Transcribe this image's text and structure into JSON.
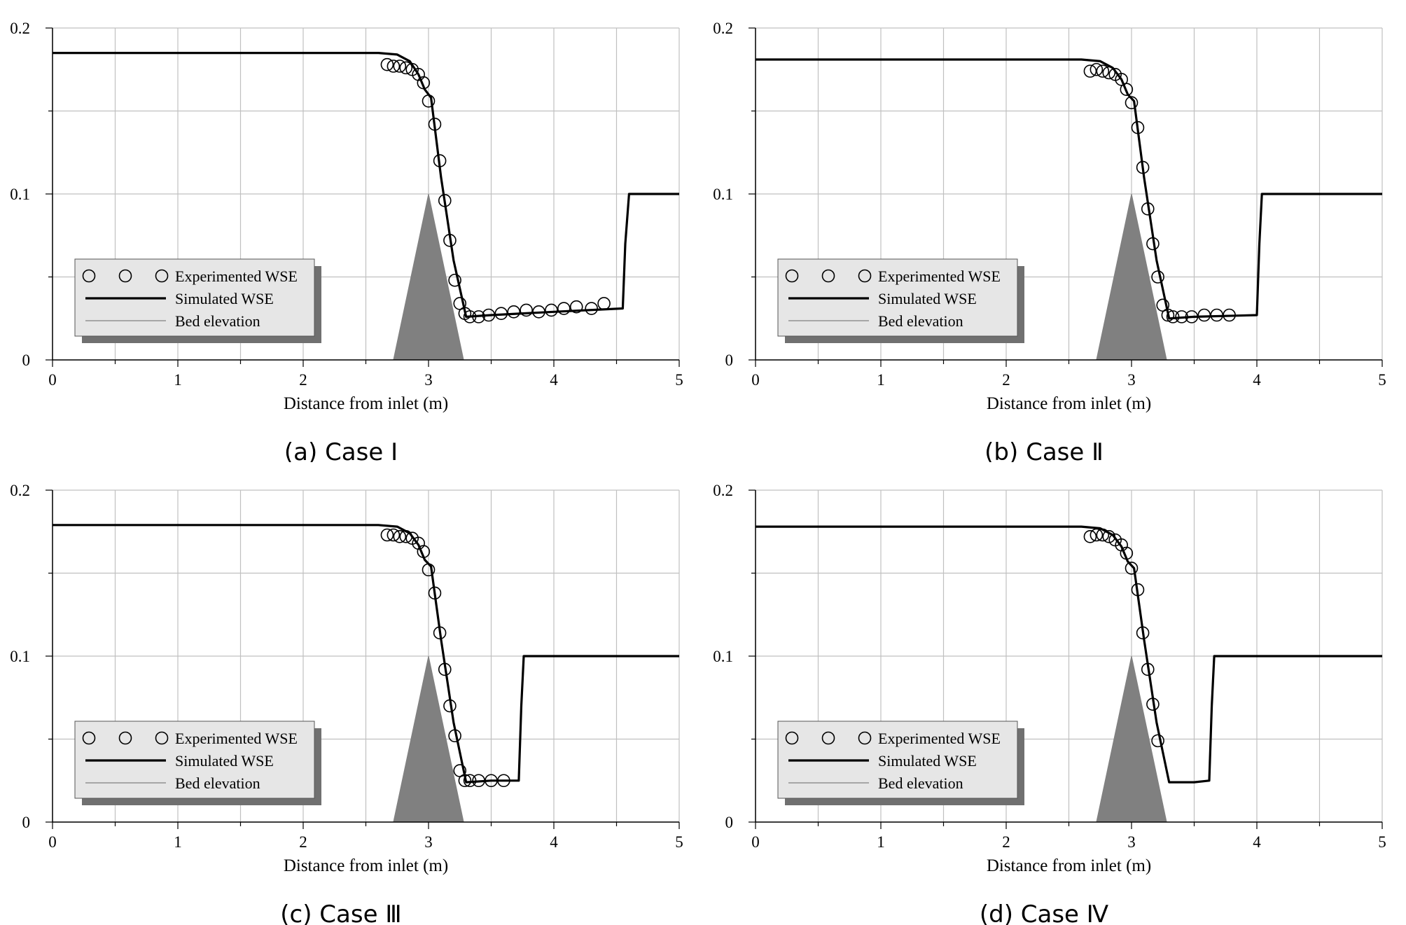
{
  "figure": {
    "legend_labels": [
      "Experimented WSE",
      "Simulated WSE",
      "Bed elevation"
    ],
    "xlabel": "Distance from inlet (m)",
    "colors": {
      "bed_fill": "#808080",
      "line": "#000000",
      "grid": "#c0c0c0",
      "legend_bg": "#e6e6e6",
      "legend_shadow": "#707070"
    }
  },
  "chart_data": [
    {
      "type": "line",
      "caption": "(a) Case Ⅰ",
      "xlabel": "Distance from inlet (m)",
      "ylabel": "",
      "xlim": [
        0,
        5
      ],
      "ylim": [
        0,
        0.2
      ],
      "x_ticks": [
        "0",
        "1",
        "2",
        "3",
        "4",
        "5"
      ],
      "y_ticks": [
        "0",
        "0.1",
        "0.2"
      ],
      "legend": [
        "Experimented WSE",
        "Simulated WSE",
        "Bed elevation"
      ],
      "series": [
        {
          "name": "Simulated WSE",
          "x": [
            0,
            2.6,
            2.75,
            2.85,
            2.92,
            2.97,
            3.02,
            3.1,
            3.2,
            3.3,
            3.5,
            4.0,
            4.55,
            4.57,
            4.6,
            5.0
          ],
          "y": [
            0.185,
            0.185,
            0.184,
            0.18,
            0.172,
            0.163,
            0.158,
            0.11,
            0.06,
            0.026,
            0.027,
            0.029,
            0.031,
            0.07,
            0.1,
            0.1
          ]
        },
        {
          "name": "Experimented WSE",
          "x": [
            2.67,
            2.72,
            2.77,
            2.82,
            2.87,
            2.92,
            2.96,
            3.0,
            3.05,
            3.09,
            3.13,
            3.17,
            3.21,
            3.25,
            3.29,
            3.33,
            3.4,
            3.48,
            3.58,
            3.68,
            3.78,
            3.88,
            3.98,
            4.08,
            4.18,
            4.3,
            4.4
          ],
          "y": [
            0.178,
            0.177,
            0.177,
            0.176,
            0.175,
            0.172,
            0.167,
            0.156,
            0.142,
            0.12,
            0.096,
            0.072,
            0.048,
            0.034,
            0.028,
            0.026,
            0.026,
            0.027,
            0.028,
            0.029,
            0.03,
            0.029,
            0.03,
            0.031,
            0.032,
            0.031,
            0.034
          ]
        },
        {
          "name": "Bed elevation",
          "x": [
            0,
            2.72,
            3.0,
            3.28,
            5.0
          ],
          "y": [
            0,
            0,
            0.1,
            0,
            0
          ]
        }
      ]
    },
    {
      "type": "line",
      "caption": "(b) Case Ⅱ",
      "xlabel": "Distance from inlet (m)",
      "ylabel": "",
      "xlim": [
        0,
        5
      ],
      "ylim": [
        0,
        0.2
      ],
      "x_ticks": [
        "0",
        "1",
        "2",
        "3",
        "4",
        "5"
      ],
      "y_ticks": [
        "0",
        "0.1",
        "0.2"
      ],
      "legend": [
        "Experimented WSE",
        "Simulated WSE",
        "Bed elevation"
      ],
      "series": [
        {
          "name": "Simulated WSE",
          "x": [
            0,
            2.6,
            2.75,
            2.85,
            2.92,
            2.97,
            3.02,
            3.1,
            3.2,
            3.3,
            3.5,
            4.0,
            4.02,
            4.04,
            5.0
          ],
          "y": [
            0.181,
            0.181,
            0.18,
            0.176,
            0.169,
            0.16,
            0.156,
            0.11,
            0.06,
            0.025,
            0.026,
            0.027,
            0.07,
            0.1,
            0.1
          ]
        },
        {
          "name": "Experimented WSE",
          "x": [
            2.67,
            2.72,
            2.77,
            2.82,
            2.87,
            2.92,
            2.96,
            3.0,
            3.05,
            3.09,
            3.13,
            3.17,
            3.21,
            3.25,
            3.29,
            3.33,
            3.4,
            3.48,
            3.58,
            3.68,
            3.78
          ],
          "y": [
            0.174,
            0.175,
            0.174,
            0.173,
            0.172,
            0.169,
            0.163,
            0.155,
            0.14,
            0.116,
            0.091,
            0.07,
            0.05,
            0.033,
            0.027,
            0.026,
            0.026,
            0.026,
            0.027,
            0.027,
            0.027
          ]
        },
        {
          "name": "Bed elevation",
          "x": [
            0,
            2.72,
            3.0,
            3.28,
            5.0
          ],
          "y": [
            0,
            0,
            0.1,
            0,
            0
          ]
        }
      ]
    },
    {
      "type": "line",
      "caption": "(c) Case Ⅲ",
      "xlabel": "Distance from inlet (m)",
      "ylabel": "",
      "xlim": [
        0,
        5
      ],
      "ylim": [
        0,
        0.2
      ],
      "x_ticks": [
        "0",
        "1",
        "2",
        "3",
        "4",
        "5"
      ],
      "y_ticks": [
        "0",
        "0.1",
        "0.2"
      ],
      "legend": [
        "Experimented WSE",
        "Simulated WSE",
        "Bed elevation"
      ],
      "series": [
        {
          "name": "Simulated WSE",
          "x": [
            0,
            2.6,
            2.75,
            2.85,
            2.92,
            2.97,
            3.02,
            3.1,
            3.2,
            3.3,
            3.5,
            3.72,
            3.74,
            3.76,
            5.0
          ],
          "y": [
            0.179,
            0.179,
            0.178,
            0.174,
            0.167,
            0.158,
            0.154,
            0.11,
            0.06,
            0.024,
            0.025,
            0.025,
            0.07,
            0.1,
            0.1
          ]
        },
        {
          "name": "Experimented WSE",
          "x": [
            2.67,
            2.72,
            2.77,
            2.82,
            2.87,
            2.92,
            2.96,
            3.0,
            3.05,
            3.09,
            3.13,
            3.17,
            3.21,
            3.25,
            3.29,
            3.33,
            3.4,
            3.5,
            3.6
          ],
          "y": [
            0.173,
            0.173,
            0.172,
            0.172,
            0.171,
            0.168,
            0.163,
            0.152,
            0.138,
            0.114,
            0.092,
            0.07,
            0.052,
            0.031,
            0.025,
            0.025,
            0.025,
            0.025,
            0.025
          ]
        },
        {
          "name": "Bed elevation",
          "x": [
            0,
            2.72,
            3.0,
            3.28,
            5.0
          ],
          "y": [
            0,
            0,
            0.1,
            0,
            0
          ]
        }
      ]
    },
    {
      "type": "line",
      "caption": "(d) Case Ⅳ",
      "xlabel": "Distance from inlet (m)",
      "ylabel": "",
      "xlim": [
        0,
        5
      ],
      "ylim": [
        0,
        0.2
      ],
      "x_ticks": [
        "0",
        "1",
        "2",
        "3",
        "4",
        "5"
      ],
      "y_ticks": [
        "0",
        "0.1",
        "0.2"
      ],
      "legend": [
        "Experimented WSE",
        "Simulated WSE",
        "Bed elevation"
      ],
      "series": [
        {
          "name": "Simulated WSE",
          "x": [
            0,
            2.6,
            2.75,
            2.85,
            2.92,
            2.97,
            3.02,
            3.1,
            3.2,
            3.3,
            3.5,
            3.62,
            3.64,
            3.66,
            5.0
          ],
          "y": [
            0.178,
            0.178,
            0.177,
            0.173,
            0.166,
            0.157,
            0.153,
            0.11,
            0.06,
            0.024,
            0.024,
            0.025,
            0.07,
            0.1,
            0.1
          ]
        },
        {
          "name": "Experimented WSE",
          "x": [
            2.67,
            2.72,
            2.77,
            2.82,
            2.87,
            2.92,
            2.96,
            3.0,
            3.05,
            3.09,
            3.13,
            3.17,
            3.21
          ],
          "y": [
            0.172,
            0.173,
            0.173,
            0.172,
            0.17,
            0.167,
            0.162,
            0.153,
            0.14,
            0.114,
            0.092,
            0.071,
            0.049
          ]
        },
        {
          "name": "Bed elevation",
          "x": [
            0,
            2.72,
            3.0,
            3.28,
            5.0
          ],
          "y": [
            0,
            0,
            0.1,
            0,
            0
          ]
        }
      ]
    }
  ]
}
